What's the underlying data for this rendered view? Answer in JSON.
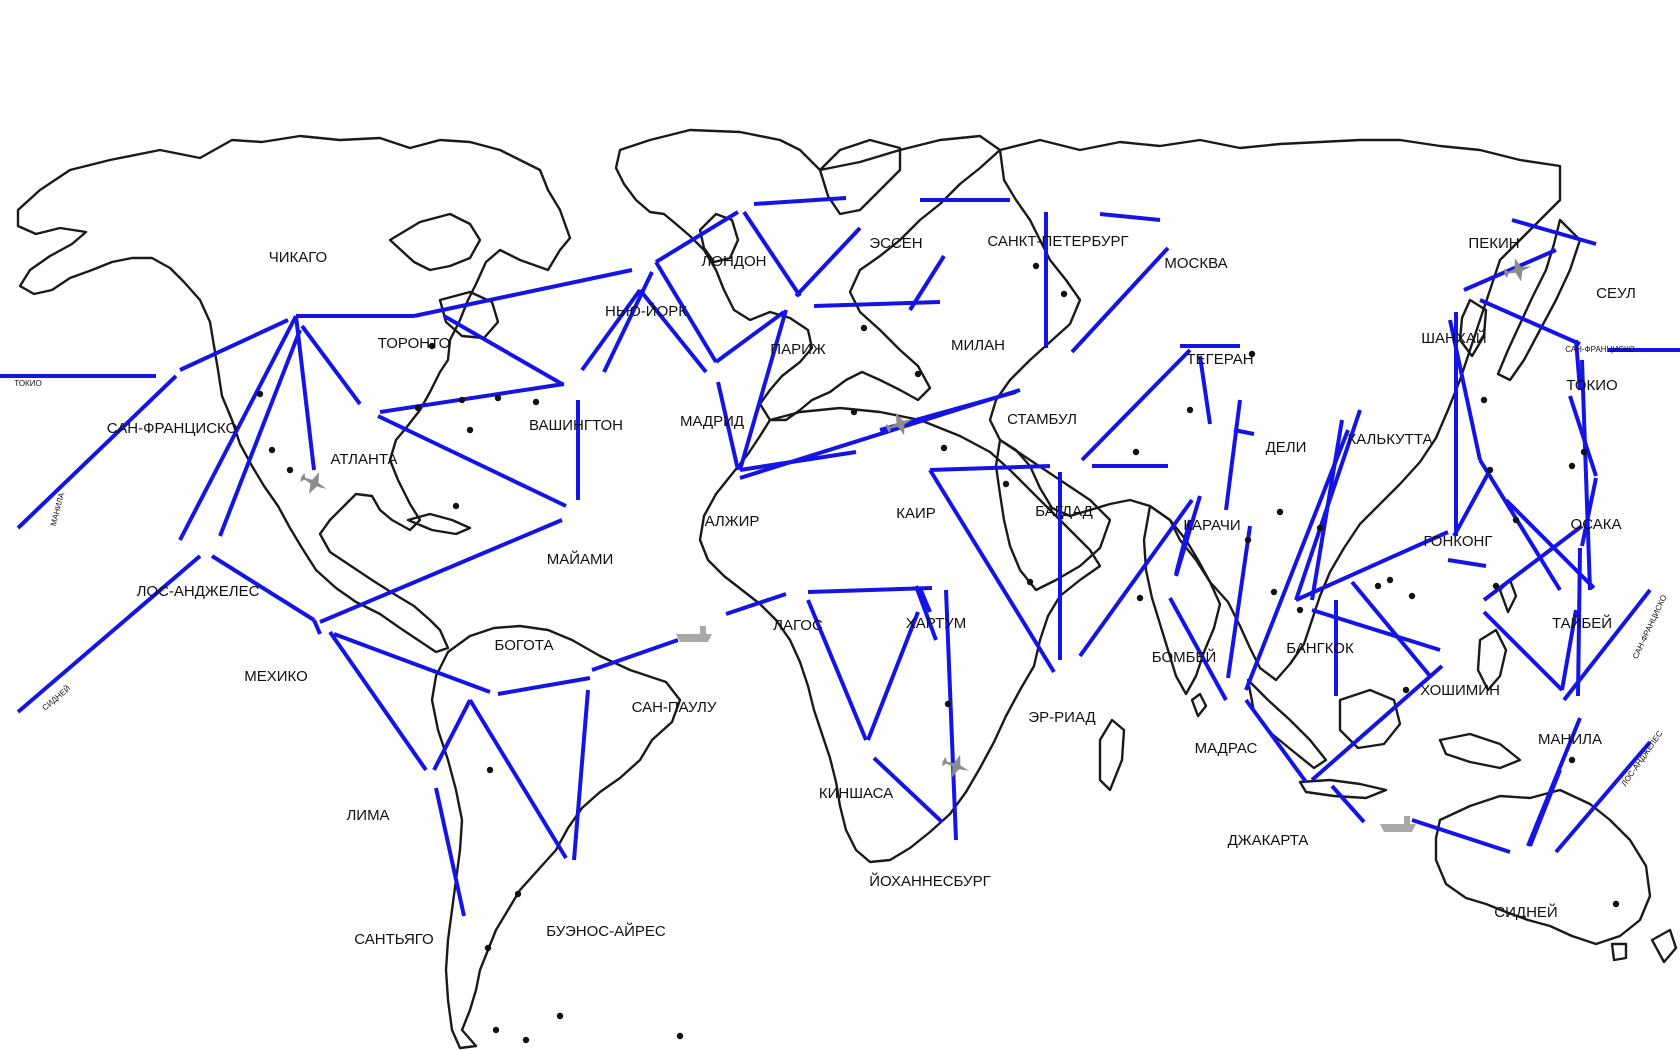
{
  "map": {
    "colors": {
      "route": "#1414e6",
      "land_outline": "#1a1a1a",
      "label": "#111111",
      "transport_icon": "#8c8c8c"
    },
    "cities": [
      {
        "id": "chicago",
        "label": "ЧИКАГО"
      },
      {
        "id": "san-francisco",
        "label": "САН-ФРАНЦИСКО"
      },
      {
        "id": "toronto",
        "label": "ТОРОНТО"
      },
      {
        "id": "atlanta",
        "label": "АТЛАНТА"
      },
      {
        "id": "washington",
        "label": "ВАШИНГТОН"
      },
      {
        "id": "new-york",
        "label": "НЬЮ-ЙОРК"
      },
      {
        "id": "los-angeles",
        "label": "ЛОС-АНДЖЕЛЕС"
      },
      {
        "id": "miami",
        "label": "МАЙАМИ"
      },
      {
        "id": "mexico",
        "label": "МЕХИКО"
      },
      {
        "id": "bogota",
        "label": "БОГОТА"
      },
      {
        "id": "lima",
        "label": "ЛИМА"
      },
      {
        "id": "santiago",
        "label": "САНТЬЯГО"
      },
      {
        "id": "buenos-aires",
        "label": "БУЭНОС-АЙРЕС"
      },
      {
        "id": "sao-paulo",
        "label": "САН-ПАУЛУ"
      },
      {
        "id": "london",
        "label": "ЛОНДОН"
      },
      {
        "id": "madrid",
        "label": "МАДРИД"
      },
      {
        "id": "paris",
        "label": "ПАРИЖ"
      },
      {
        "id": "essen",
        "label": "ЭССЕН"
      },
      {
        "id": "milan",
        "label": "МИЛАН"
      },
      {
        "id": "st-petersburg",
        "label": "САНКТ-ПЕТЕРБУРГ"
      },
      {
        "id": "moscow",
        "label": "МОСКВА"
      },
      {
        "id": "algiers",
        "label": "АЛЖИР"
      },
      {
        "id": "istanbul",
        "label": "СТАМБУЛ"
      },
      {
        "id": "cairo",
        "label": "КАИР"
      },
      {
        "id": "baghdad",
        "label": "БАГДАД"
      },
      {
        "id": "tehran",
        "label": "ТЕГЕРАН"
      },
      {
        "id": "lagos",
        "label": "ЛАГОС"
      },
      {
        "id": "khartoum",
        "label": "ХАРТУМ"
      },
      {
        "id": "kinshasa",
        "label": "КИНШАСА"
      },
      {
        "id": "johannesburg",
        "label": "ЙОХАННЕСБУРГ"
      },
      {
        "id": "riyadh",
        "label": "ЭР-РИАД"
      },
      {
        "id": "karachi",
        "label": "КАРАЧИ"
      },
      {
        "id": "delhi",
        "label": "ДЕЛИ"
      },
      {
        "id": "mumbai",
        "label": "БОМБЕЙ"
      },
      {
        "id": "chennai",
        "label": "МАДРАС"
      },
      {
        "id": "kolkata",
        "label": "КАЛЬКУТТА"
      },
      {
        "id": "bangkok",
        "label": "БАНГКОК"
      },
      {
        "id": "jakarta",
        "label": "ДЖАКАРТА"
      },
      {
        "id": "beijing",
        "label": "ПЕКИН"
      },
      {
        "id": "seoul",
        "label": "СЕУЛ"
      },
      {
        "id": "shanghai",
        "label": "ШАНХАЙ"
      },
      {
        "id": "tokyo",
        "label": "ТОКИО"
      },
      {
        "id": "osaka",
        "label": "ОСАКА"
      },
      {
        "id": "hong-kong",
        "label": "ГОНКОНГ"
      },
      {
        "id": "taipei",
        "label": "ТАЙБЕЙ"
      },
      {
        "id": "ho-chi-minh",
        "label": "ХОШИМИН"
      },
      {
        "id": "manila",
        "label": "МАНИЛА"
      },
      {
        "id": "sydney",
        "label": "СИДНЕЙ"
      }
    ],
    "edge_labels": [
      {
        "id": "tokyo-west",
        "label": "ТОКИО"
      },
      {
        "id": "manila-west",
        "label": "МАНИЛА"
      },
      {
        "id": "sydney-west",
        "label": "СИДНЕЙ"
      },
      {
        "id": "sf-east",
        "label": "САН-ФРАНЦИСКО"
      },
      {
        "id": "sf-east-2",
        "label": "САН-ФРАНЦИСКО"
      },
      {
        "id": "la-east",
        "label": "ЛОС-АНДЖЕЛЕС"
      }
    ],
    "transport_icons": [
      "airplane-icon",
      "cargo-ship-icon"
    ]
  }
}
